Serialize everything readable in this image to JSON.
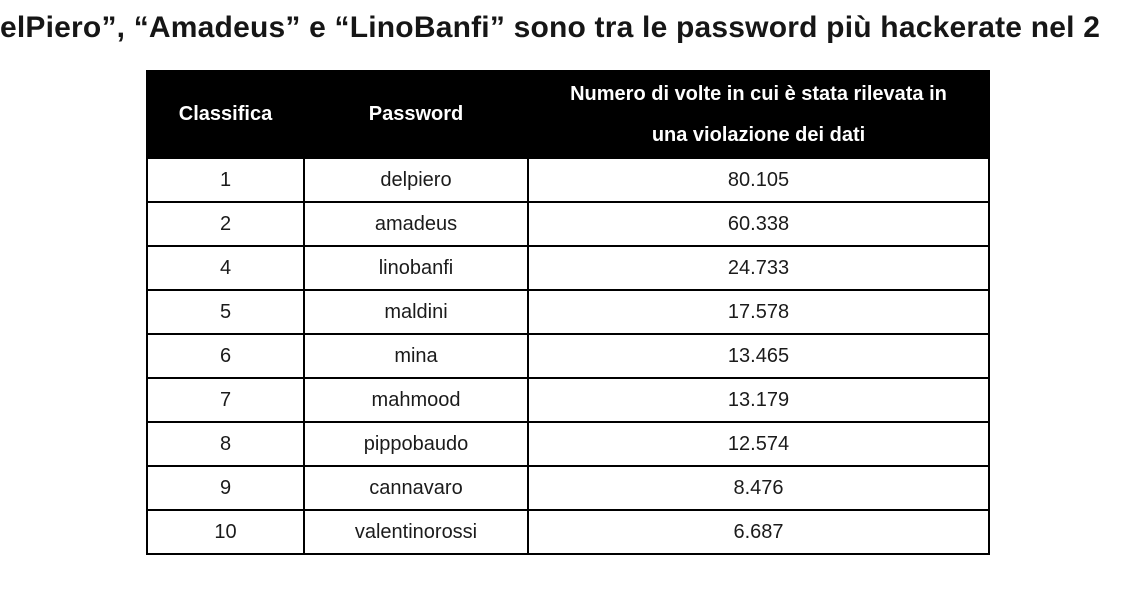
{
  "page": {
    "title": "elPiero”, “Amadeus” e “LinoBanfi” sono tra le password più hackerate nel 2"
  },
  "colors": {
    "background": "#ffffff",
    "header_bg": "#000000",
    "header_text": "#ffffff",
    "body_text": "#1b1b1b",
    "border": "#000000"
  },
  "table": {
    "headers": {
      "col1": "Classifica",
      "col2": "Password",
      "col3_lines": [
        "Numero di volte in cui è stata rilevata in",
        "una violazione dei dati"
      ]
    },
    "rows": [
      {
        "rank": "1",
        "password": "delpiero",
        "count": "80.105"
      },
      {
        "rank": "2",
        "password": "amadeus",
        "count": "60.338"
      },
      {
        "rank": "4",
        "password": "linobanfi",
        "count": "24.733"
      },
      {
        "rank": "5",
        "password": "maldini",
        "count": "17.578"
      },
      {
        "rank": "6",
        "password": "mina",
        "count": "13.465"
      },
      {
        "rank": "7",
        "password": "mahmood",
        "count": "13.179"
      },
      {
        "rank": "8",
        "password": "pippobaudo",
        "count": "12.574"
      },
      {
        "rank": "9",
        "password": "cannavaro",
        "count": "8.476"
      },
      {
        "rank": "10",
        "password": "valentinorossi",
        "count": "6.687"
      }
    ]
  }
}
